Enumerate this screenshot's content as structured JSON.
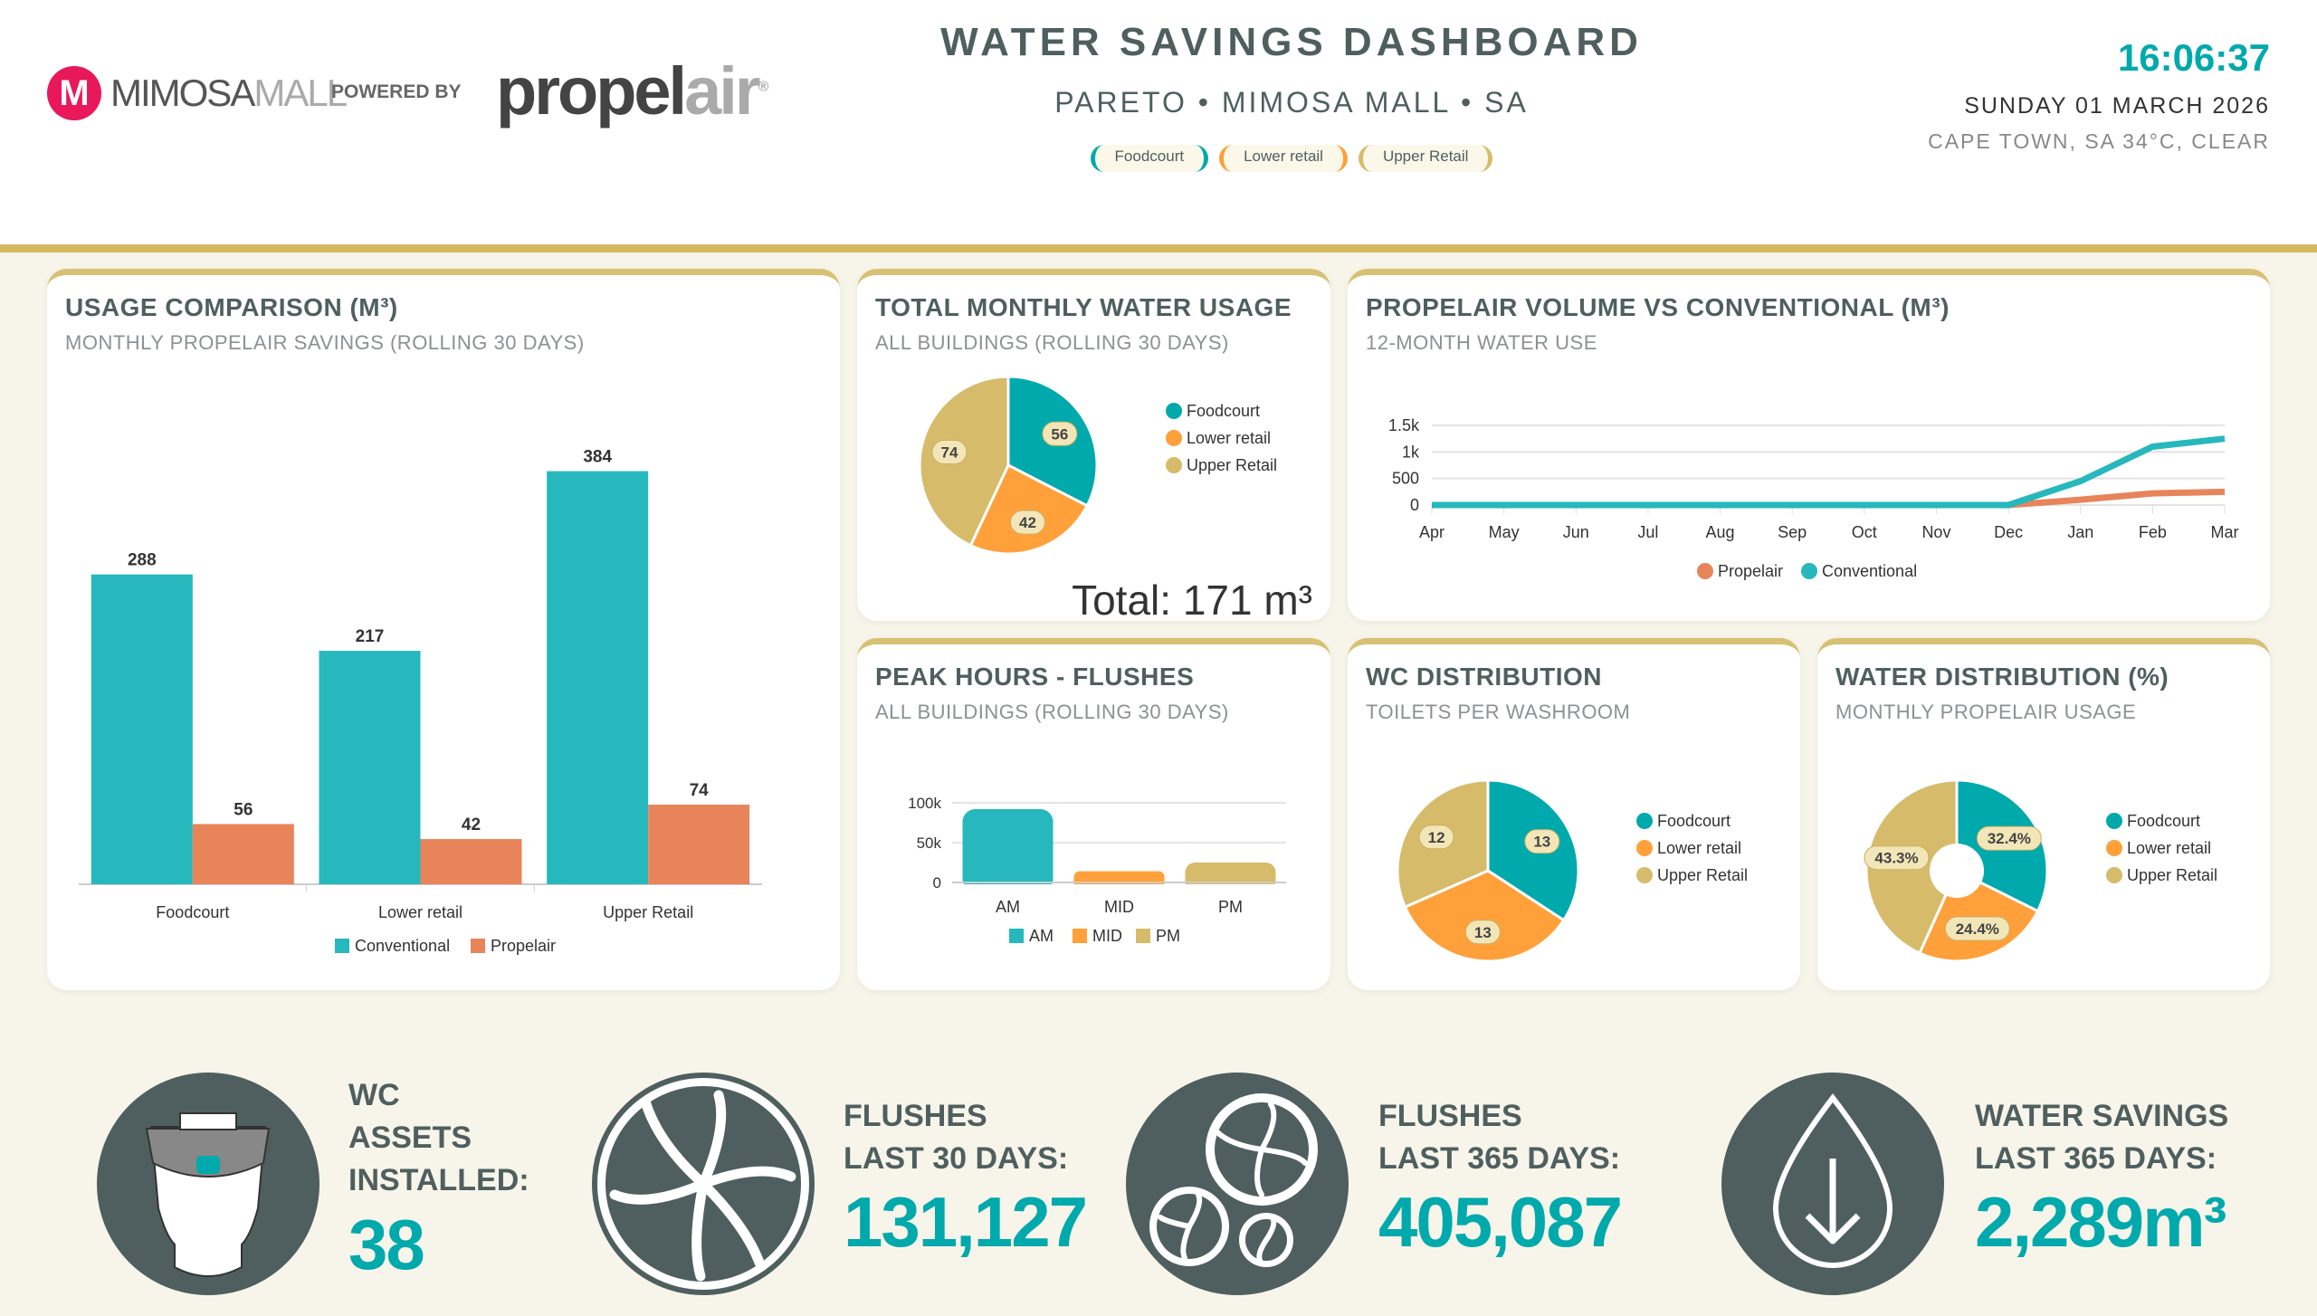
{
  "header": {
    "mall_logo_initial": "M",
    "mall_name_bold": "MIMOSA",
    "mall_name_light": "MALL",
    "powered_by": "POWERED BY",
    "brand_dark": "propel",
    "brand_light": "air",
    "brand_reg": "®",
    "title": "WATER SAVINGS DASHBOARD",
    "subtitle": "PARETO • MIMOSA MALL • SA",
    "filters": [
      {
        "label": "Foodcourt",
        "color": "#00a9ab"
      },
      {
        "label": "Lower retail",
        "color": "#ffa03a"
      },
      {
        "label": "Upper Retail",
        "color": "#d6bb6a"
      }
    ],
    "time": "16:06:37",
    "date": "SUNDAY 01 MARCH 2026",
    "weather": "CAPE TOWN, SA 34°C, CLEAR"
  },
  "colors": {
    "teal": "#26b8bd",
    "teal_pie": "#00a9ab",
    "propelair": "#e8845a",
    "lower": "#ffa03a",
    "upper": "#d6bb6a",
    "gold": "#d4b962",
    "dark": "#4f5f5f"
  },
  "cards": {
    "usage": {
      "title": "USAGE COMPARISON (M³)",
      "subtitle": "MONTHLY PROPELAIR SAVINGS (ROLLING 30 DAYS)"
    },
    "total": {
      "title": "TOTAL MONTHLY WATER USAGE",
      "subtitle": "ALL BUILDINGS (ROLLING 30 DAYS)",
      "total_label": "Total: 171 m³"
    },
    "volume": {
      "title": "PROPELAIR VOLUME VS CONVENTIONAL (M³)",
      "subtitle": "12-MONTH WATER USE"
    },
    "peak": {
      "title": "PEAK HOURS - FLUSHES",
      "subtitle": "ALL BUILDINGS (ROLLING 30 DAYS)"
    },
    "wc": {
      "title": "WC DISTRIBUTION",
      "subtitle": "TOILETS PER WASHROOM"
    },
    "water": {
      "title": "WATER DISTRIBUTION (%)",
      "subtitle": "MONTHLY PROPELAIR USAGE"
    }
  },
  "chart_data": [
    {
      "id": "usage",
      "type": "bar",
      "categories": [
        "Foodcourt",
        "Lower retail",
        "Upper Retail"
      ],
      "series": [
        {
          "name": "Conventional",
          "values": [
            288,
            217,
            384
          ],
          "color": "#26b8bd"
        },
        {
          "name": "Propelair",
          "values": [
            56,
            42,
            74
          ],
          "color": "#e8845a"
        }
      ],
      "ylim": [
        0,
        440
      ],
      "legend": "bottom",
      "data_labels": true
    },
    {
      "id": "total",
      "type": "pie",
      "categories": [
        "Foodcourt",
        "Lower retail",
        "Upper Retail"
      ],
      "values": [
        56,
        42,
        74
      ],
      "labels": [
        "56",
        "42",
        "74"
      ],
      "colors": [
        "#00a9ab",
        "#ffa03a",
        "#d6bb6a"
      ],
      "legend": "right"
    },
    {
      "id": "volume",
      "type": "line",
      "x": [
        "Apr",
        "May",
        "Jun",
        "Jul",
        "Aug",
        "Sep",
        "Oct",
        "Nov",
        "Dec",
        "Jan",
        "Feb",
        "Mar"
      ],
      "series": [
        {
          "name": "Propelair",
          "values": [
            0,
            0,
            0,
            0,
            0,
            0,
            0,
            0,
            0,
            100,
            220,
            250
          ],
          "color": "#e8845a"
        },
        {
          "name": "Conventional",
          "values": [
            0,
            0,
            0,
            0,
            0,
            0,
            0,
            0,
            0,
            450,
            1100,
            1250
          ],
          "color": "#26b8bd"
        }
      ],
      "yticks": [
        "0",
        "500",
        "1k",
        "1.5k"
      ],
      "ylim": [
        0,
        1500
      ],
      "grid": true,
      "legend": "bottom"
    },
    {
      "id": "peak",
      "type": "bar",
      "categories": [
        "AM",
        "MID",
        "PM"
      ],
      "values": [
        92000,
        14000,
        25000
      ],
      "colors": [
        "#26b8bd",
        "#ffa03a",
        "#d6bb6a"
      ],
      "yticks": [
        "0",
        "50k",
        "100k"
      ],
      "ylim": [
        0,
        100000
      ],
      "grid": true,
      "legend": "bottom"
    },
    {
      "id": "wc",
      "type": "pie",
      "categories": [
        "Foodcourt",
        "Lower retail",
        "Upper Retail"
      ],
      "values": [
        13,
        13,
        12
      ],
      "labels": [
        "13",
        "13",
        "12"
      ],
      "colors": [
        "#00a9ab",
        "#ffa03a",
        "#d6bb6a"
      ],
      "legend": "right"
    },
    {
      "id": "water",
      "type": "pie",
      "donut": true,
      "categories": [
        "Foodcourt",
        "Lower retail",
        "Upper Retail"
      ],
      "values": [
        32.4,
        24.4,
        43.3
      ],
      "labels": [
        "32.4%",
        "24.4%",
        "43.3%"
      ],
      "colors": [
        "#00a9ab",
        "#ffa03a",
        "#d6bb6a"
      ],
      "legend": "right"
    }
  ],
  "stats": [
    {
      "lines": [
        "WC",
        "ASSETS",
        "INSTALLED:"
      ],
      "value": "38",
      "icon": "toilet-icon"
    },
    {
      "lines": [
        "FLUSHES",
        "LAST 30 DAYS:"
      ],
      "value": "131,127",
      "icon": "flush-swirl-icon"
    },
    {
      "lines": [
        "FLUSHES",
        "LAST 365 DAYS:"
      ],
      "value": "405,087",
      "icon": "multi-swirl-icon"
    },
    {
      "lines": [
        "WATER SAVINGS",
        "LAST 365 DAYS:"
      ],
      "value": "2,289m³",
      "icon": "water-drop-icon"
    }
  ]
}
